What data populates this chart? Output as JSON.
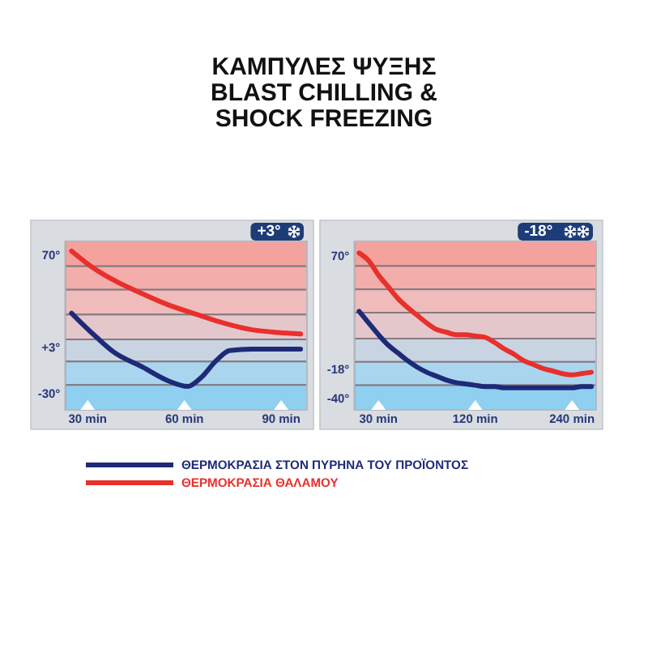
{
  "chart_data": [
    {
      "type": "other",
      "title": "ΚΑΜΠΥΛΕΣ ΨΥΞΗΣ",
      "subtitle": "BLAST CHILLING & SHOCK FREEZING"
    },
    {
      "type": "line",
      "title": "+3°",
      "xlim": [
        23,
        98
      ],
      "xticks": [
        {
          "value": 30,
          "label": "30 min"
        },
        {
          "value": 60,
          "label": "60 min"
        },
        {
          "value": 90,
          "label": "90 min"
        }
      ],
      "ylim": [
        -42,
        80
      ],
      "yticks": [
        {
          "value": 70,
          "label": "70°"
        },
        {
          "value": 3,
          "label": "+3°"
        },
        {
          "value": -30,
          "label": "-30°"
        }
      ],
      "bands": [
        {
          "axis": "y",
          "from": 62,
          "to": 80,
          "color": "#f4a29e"
        },
        {
          "axis": "y",
          "from": 45,
          "to": 62,
          "color": "#f3aeab"
        },
        {
          "axis": "y",
          "from": 27,
          "to": 45,
          "color": "#efbcbb"
        },
        {
          "axis": "y",
          "from": 9,
          "to": 27,
          "color": "#e4c7cb"
        },
        {
          "axis": "y",
          "from": -7,
          "to": 9,
          "color": "#c9d4e3"
        },
        {
          "axis": "y",
          "from": -24,
          "to": -7,
          "color": "#aad5ee"
        },
        {
          "axis": "y",
          "from": -42,
          "to": -24,
          "color": "#8fd0f1"
        }
      ],
      "legend": "bottom",
      "series": [
        {
          "name": "ΘΕΡΜΟΚΡΑΣΙΑ ΣΤΟΝ ΠΥΡΗΝΑ ΤΟΥ ΠΡΟΪΟΝΤΟΣ",
          "color": "#1e2a78",
          "x": [
            25,
            28,
            33,
            38,
            47,
            55,
            61,
            65,
            70,
            74,
            81,
            96
          ],
          "values": [
            28,
            21,
            10,
            0,
            -11,
            -21,
            -25,
            -19,
            -6,
            1,
            2,
            2
          ]
        },
        {
          "name": "ΘΕΡΜΟΚΡΑΣΙΑ ΘΑΛΑΜΟΥ",
          "color": "#e8302c",
          "x": [
            25,
            31,
            38,
            47,
            55,
            64,
            72,
            81,
            89,
            96
          ],
          "values": [
            73,
            62,
            52,
            42,
            34,
            27,
            21,
            16,
            14,
            13
          ]
        }
      ]
    },
    {
      "type": "line",
      "title": "-18°",
      "categories": [
        null,
        null,
        "30 min",
        null,
        null,
        null,
        null,
        null,
        null,
        null,
        null,
        null,
        "120 min",
        null,
        null,
        null,
        null,
        null,
        null,
        null,
        null,
        null,
        "240 min",
        null,
        null
      ],
      "ylim": [
        -49,
        81
      ],
      "yticks": [
        {
          "value": 70,
          "label": "70°"
        },
        {
          "value": -18,
          "label": "-18°"
        },
        {
          "value": -40,
          "label": "-40°"
        }
      ],
      "bands": [
        {
          "axis": "y",
          "from": 62,
          "to": 81,
          "color": "#f4a29e"
        },
        {
          "axis": "y",
          "from": 44,
          "to": 62,
          "color": "#f3aeab"
        },
        {
          "axis": "y",
          "from": 26,
          "to": 44,
          "color": "#efbcbb"
        },
        {
          "axis": "y",
          "from": 6,
          "to": 26,
          "color": "#e4c7cb"
        },
        {
          "axis": "y",
          "from": -12,
          "to": 6,
          "color": "#c9d4e3"
        },
        {
          "axis": "y",
          "from": -30,
          "to": -12,
          "color": "#aad5ee"
        },
        {
          "axis": "y",
          "from": -49,
          "to": -30,
          "color": "#8fd0f1"
        }
      ],
      "series": [
        {
          "color": "#1e2a78",
          "values": [
            27,
            18,
            9,
            1,
            -5,
            -11,
            -16,
            -20,
            -23,
            -26,
            -28,
            -29,
            -30,
            -31,
            -31,
            -32,
            -32,
            -32,
            -32,
            -32,
            -32,
            -32,
            -32,
            -31,
            -31
          ]
        },
        {
          "color": "#e8302c",
          "values": [
            72,
            66,
            55,
            46,
            37,
            30,
            24,
            18,
            13,
            11,
            9,
            9,
            8,
            7,
            3,
            -2,
            -6,
            -11,
            -14,
            -17,
            -19,
            -21,
            -22,
            -21,
            -20
          ]
        }
      ]
    }
  ]
}
